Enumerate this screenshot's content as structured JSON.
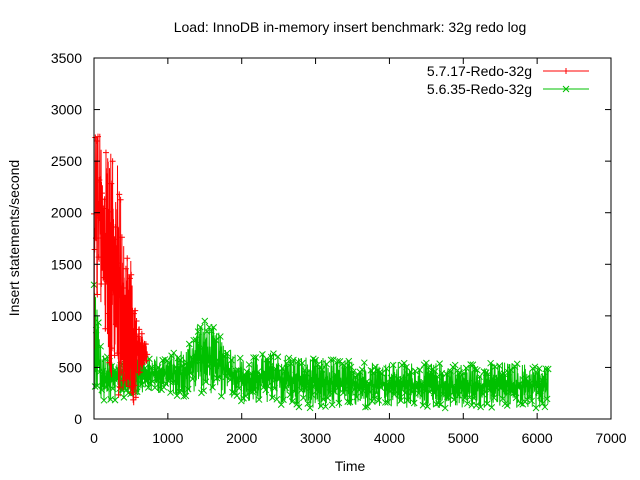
{
  "chart_data": {
    "type": "line",
    "title": "Load: InnoDB in-memory insert benchmark: 32g redo log",
    "xlabel": "Time",
    "ylabel": "Insert statements/second",
    "xlim": [
      0,
      7000
    ],
    "ylim": [
      0,
      3500
    ],
    "xticks": [
      "0",
      "1000",
      "2000",
      "3000",
      "4000",
      "5000",
      "6000",
      "7000"
    ],
    "yticks": [
      "0",
      "500",
      "1000",
      "1500",
      "2000",
      "2500",
      "3000",
      "3500"
    ],
    "grid": false,
    "legend_position": "top-right",
    "series": [
      {
        "name": "5.7.17-Redo-32g",
        "color": "#ff0000",
        "marker": "plus",
        "x_end": 720,
        "envelope": [
          {
            "x": 0,
            "low": 350,
            "high": 2700
          },
          {
            "x": 20,
            "low": 800,
            "high": 3000
          },
          {
            "x": 60,
            "low": 1300,
            "high": 2900
          },
          {
            "x": 120,
            "low": 900,
            "high": 2600
          },
          {
            "x": 200,
            "low": 500,
            "high": 2600
          },
          {
            "x": 260,
            "low": 300,
            "high": 2550
          },
          {
            "x": 320,
            "low": 200,
            "high": 2500
          },
          {
            "x": 380,
            "low": 300,
            "high": 2100
          },
          {
            "x": 440,
            "low": 200,
            "high": 1650
          },
          {
            "x": 500,
            "low": 100,
            "high": 1600
          },
          {
            "x": 560,
            "low": 150,
            "high": 1100
          },
          {
            "x": 620,
            "low": 450,
            "high": 900
          },
          {
            "x": 680,
            "low": 500,
            "high": 780
          },
          {
            "x": 720,
            "low": 550,
            "high": 700
          }
        ]
      },
      {
        "name": "5.6.35-Redo-32g",
        "color": "#00c000",
        "marker": "cross",
        "x_end": 6150,
        "envelope": [
          {
            "x": 0,
            "low": 350,
            "high": 1500
          },
          {
            "x": 40,
            "low": 250,
            "high": 1200
          },
          {
            "x": 100,
            "low": 150,
            "high": 650
          },
          {
            "x": 200,
            "low": 150,
            "high": 600
          },
          {
            "x": 400,
            "low": 200,
            "high": 600
          },
          {
            "x": 700,
            "low": 250,
            "high": 620
          },
          {
            "x": 1000,
            "low": 250,
            "high": 620
          },
          {
            "x": 1250,
            "low": 200,
            "high": 700
          },
          {
            "x": 1400,
            "low": 250,
            "high": 980
          },
          {
            "x": 1550,
            "low": 250,
            "high": 950
          },
          {
            "x": 1800,
            "low": 200,
            "high": 750
          },
          {
            "x": 2050,
            "low": 150,
            "high": 560
          },
          {
            "x": 2300,
            "low": 150,
            "high": 660
          },
          {
            "x": 3000,
            "low": 100,
            "high": 600
          },
          {
            "x": 4000,
            "low": 100,
            "high": 560
          },
          {
            "x": 5000,
            "low": 100,
            "high": 540
          },
          {
            "x": 5500,
            "low": 100,
            "high": 560
          },
          {
            "x": 6150,
            "low": 100,
            "high": 520
          }
        ]
      }
    ]
  }
}
